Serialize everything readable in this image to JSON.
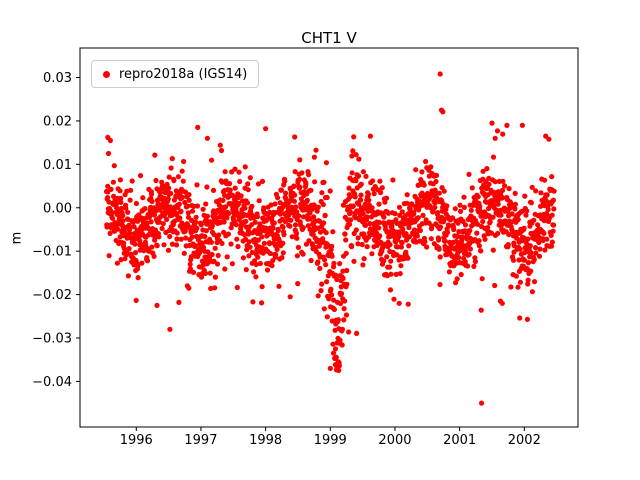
{
  "figure": {
    "title": "CHT1 V",
    "y_axis_label": "m",
    "background": "#ffffff"
  },
  "legend": {
    "label": "repro2018a (IGS14)",
    "marker_color": "#ff0000",
    "position": "upper left"
  },
  "chart_data": {
    "type": "scatter",
    "title": "CHT1 V",
    "xlabel": "",
    "ylabel": "m",
    "series_name": "repro2018a (IGS14)",
    "marker_color": "#ff0000",
    "marker_radius": 2.6,
    "grid": false,
    "legend_position": "upper left",
    "xlim": [
      1995.13,
      2002.83
    ],
    "ylim": [
      -0.0505,
      0.0368
    ],
    "xticks": [
      1996,
      1997,
      1998,
      1999,
      2000,
      2001,
      2002
    ],
    "xtick_labels": [
      "1996",
      "1997",
      "1998",
      "1999",
      "2000",
      "2001",
      "2002"
    ],
    "yticks": [
      -0.04,
      -0.03,
      -0.02,
      -0.01,
      0,
      0.01,
      0.02,
      0.03
    ],
    "ytick_labels": [
      "−0.04",
      "−0.03",
      "−0.02",
      "−0.01",
      "0.00",
      "0.01",
      "0.02",
      "0.03"
    ],
    "description": "Daily GPS vertical (V) position residual time series for station CHT1, solution repro2018a in IGS14 frame; dense scatter around -0.005 m with seasonal oscillation of ~0.004 m amplitude, a pronounced negative excursion to ~-0.037 m in early 1999, and isolated outliers at +0.031 m (2000.7) and -0.045 m (2001.34).",
    "cloud_generator": {
      "seed": 1337,
      "n": 1900,
      "x_start": 1995.54,
      "x_end": 2002.46,
      "mean_offset": -0.0035,
      "seasonal_amplitude": 0.0042,
      "seasonal_phase": 0.25,
      "noise_sd": 0.0047,
      "wide_noise_sd": 0.009,
      "wide_noise_prob": 0.05,
      "dip": {
        "center": 1999.12,
        "width": 0.1,
        "depth": -0.022,
        "extra_sd": 0.003
      },
      "clamp_low": -0.0265,
      "clamp_dip_low": -0.0375,
      "clamp_high": 0.0215
    },
    "highlight_points": [
      [
        1995.56,
        0.0162
      ],
      [
        1995.57,
        0.0125
      ],
      [
        1995.6,
        0.0155
      ],
      [
        1996.32,
        -0.0225
      ],
      [
        1996.52,
        -0.028
      ],
      [
        1996.95,
        0.0185
      ],
      [
        1997.1,
        0.016
      ],
      [
        1998.0,
        0.0182
      ],
      [
        1998.38,
        -0.0205
      ],
      [
        1998.45,
        0.0163
      ],
      [
        1999.0,
        -0.037
      ],
      [
        1999.05,
        -0.0335
      ],
      [
        1999.08,
        -0.0325
      ],
      [
        1999.15,
        -0.0305
      ],
      [
        1999.62,
        0.0165
      ],
      [
        2000.7,
        0.0308
      ],
      [
        2000.72,
        0.0225
      ],
      [
        2000.74,
        0.0221
      ],
      [
        2001.34,
        -0.045
      ],
      [
        2001.5,
        0.0195
      ],
      [
        2001.55,
        0.016
      ],
      [
        2001.63,
        -0.0215
      ],
      [
        2001.66,
        -0.022
      ],
      [
        2001.97,
        0.019
      ],
      [
        2002.33,
        0.0165
      ],
      [
        2002.38,
        0.0158
      ]
    ]
  }
}
